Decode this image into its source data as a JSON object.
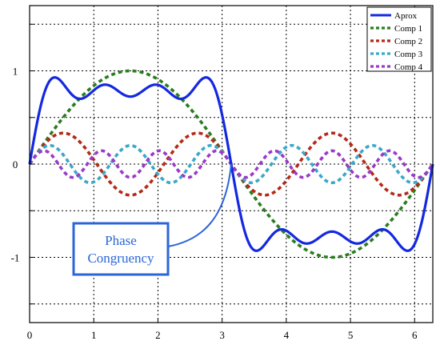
{
  "chart_data": {
    "type": "line",
    "title": "",
    "xlabel": "",
    "ylabel": "",
    "xlim": [
      0,
      6.2832
    ],
    "ylim": [
      -1.7,
      1.7
    ],
    "xticks": [
      0,
      1,
      2,
      3,
      4,
      5,
      6
    ],
    "xtick_labels": [
      "0",
      "1",
      "2",
      "3",
      "4",
      "5",
      "6"
    ],
    "yticks": [
      -1,
      0,
      1
    ],
    "ytick_labels": [
      "-1",
      "0",
      "1"
    ],
    "grid": true,
    "legend_position": "top-right",
    "series": [
      {
        "name": "Aprox",
        "function": "sum of components",
        "color": "#1428e0",
        "style": "solid"
      },
      {
        "name": "Comp 1",
        "function": "sin(x)",
        "amplitude": 1.0,
        "frequency": 1,
        "color": "#2a7d1e",
        "style": "dashed"
      },
      {
        "name": "Comp 2",
        "function": "sin(3x)/3",
        "amplitude": 0.333,
        "frequency": 3,
        "color": "#b52a18",
        "style": "dashed"
      },
      {
        "name": "Comp 3",
        "function": "sin(5x)/5",
        "amplitude": 0.2,
        "frequency": 5,
        "color": "#3aa8c8",
        "style": "dashed"
      },
      {
        "name": "Comp 4",
        "function": "sin(7x)/7",
        "amplitude": 0.143,
        "frequency": 7,
        "color": "#9a3ac8",
        "style": "dashed"
      }
    ],
    "annotation": {
      "lines": [
        "Phase",
        "Congruency"
      ],
      "x": 3.1416,
      "y": 0,
      "color": "#2b66d9"
    }
  }
}
